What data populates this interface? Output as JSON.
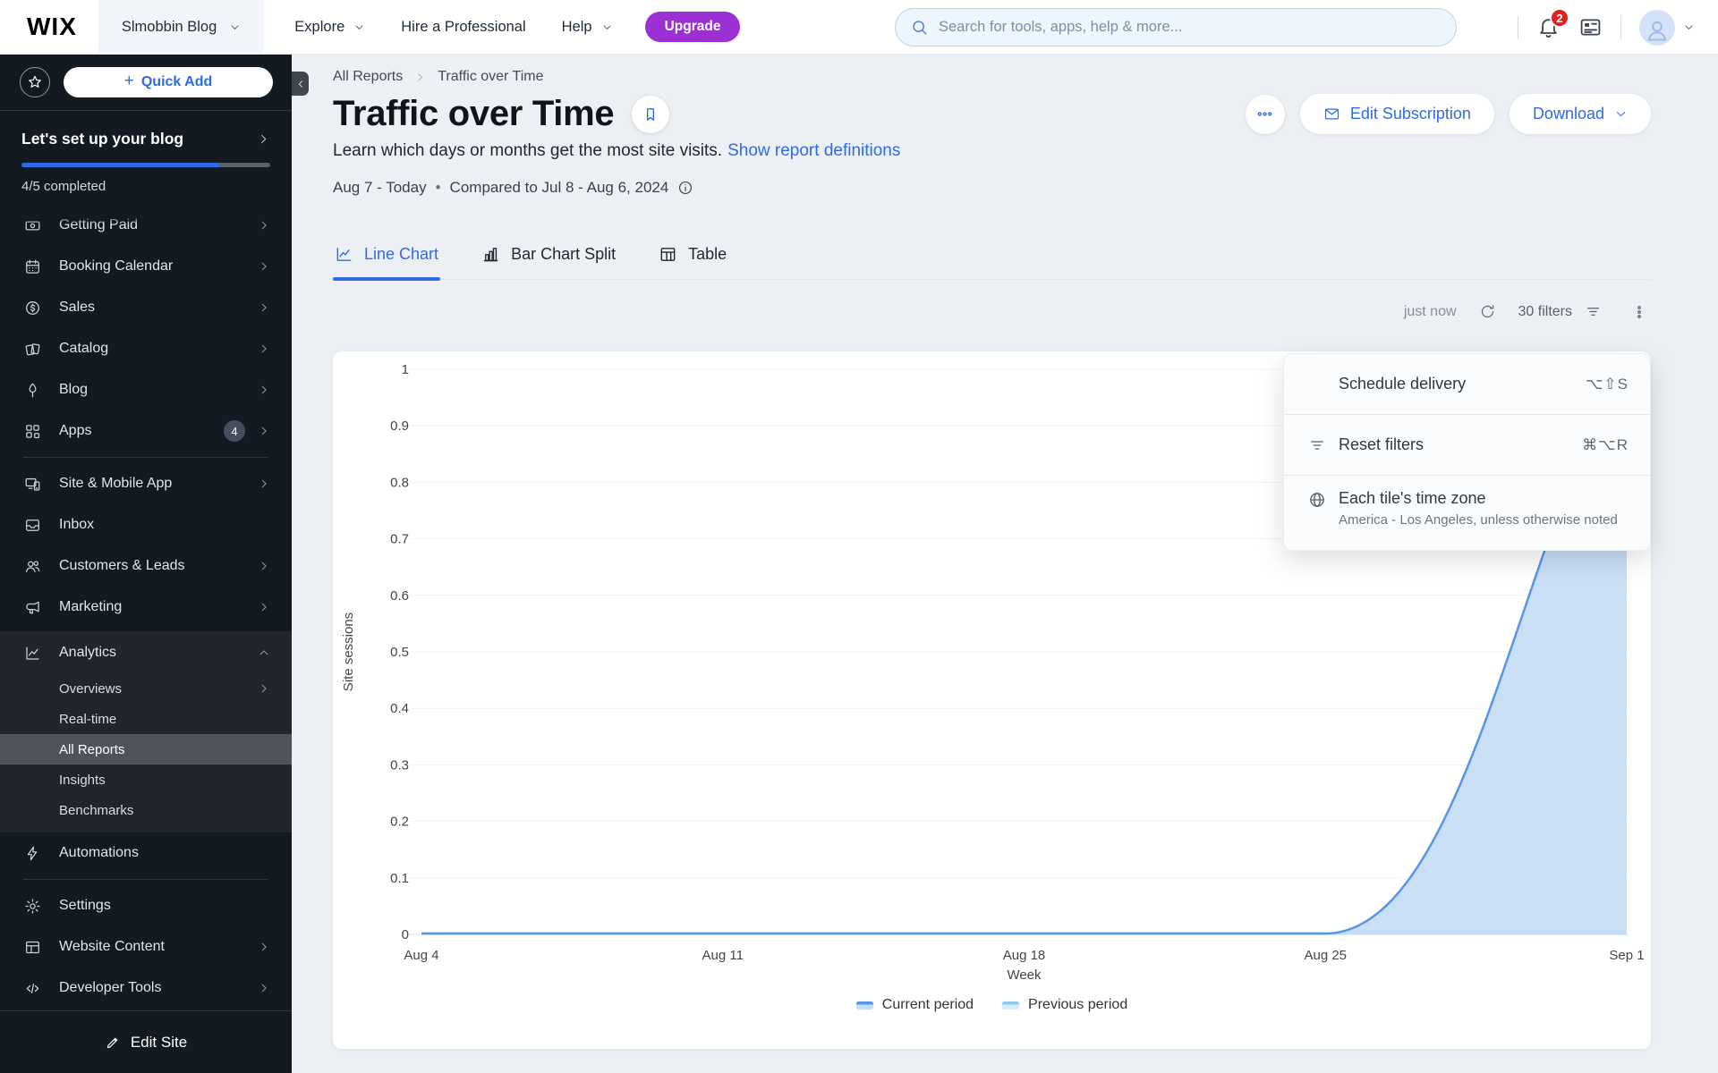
{
  "colors": {
    "accent_blue": "#2f6be4",
    "upgrade_purple": "#9c30d2",
    "notification_red": "#e21f1f",
    "sidebar_bg": "#141a22",
    "page_bg": "#eceff3"
  },
  "topbar": {
    "logo": "WIX",
    "site_menu": {
      "label": "Slmobbin Blog"
    },
    "nav": [
      {
        "label": "Explore"
      },
      {
        "label": "Hire a Professional"
      },
      {
        "label": "Help"
      }
    ],
    "upgrade_label": "Upgrade",
    "search": {
      "placeholder": "Search for tools, apps, help & more..."
    },
    "notifications_badge": "2"
  },
  "sidebar": {
    "quick_add_label": "Quick Add",
    "setup": {
      "title": "Let's set up your blog",
      "completed_text": "4/5 completed",
      "progress_percent": 80
    },
    "menu": [
      {
        "label": "Getting Paid",
        "icon": "getting-paid",
        "chevron": true,
        "clipped": true
      },
      {
        "label": "Booking Calendar",
        "icon": "booking-calendar",
        "chevron": true
      },
      {
        "label": "Sales",
        "icon": "sales",
        "chevron": true
      },
      {
        "label": "Catalog",
        "icon": "catalog",
        "chevron": true
      },
      {
        "label": "Blog",
        "icon": "blog",
        "chevron": true
      },
      {
        "label": "Apps",
        "icon": "apps",
        "chevron": true,
        "badge": "4"
      },
      {
        "divider": true
      },
      {
        "label": "Site & Mobile App",
        "icon": "site-mobile",
        "chevron": true
      },
      {
        "label": "Inbox",
        "icon": "inbox"
      },
      {
        "label": "Customers & Leads",
        "icon": "customers",
        "chevron": true
      },
      {
        "label": "Marketing",
        "icon": "marketing",
        "chevron": true
      },
      {
        "label": "Analytics",
        "icon": "analytics",
        "expanded": true,
        "children": [
          {
            "label": "Overviews",
            "chevron": true
          },
          {
            "label": "Real-time"
          },
          {
            "label": "All Reports",
            "selected": true
          },
          {
            "label": "Insights"
          },
          {
            "label": "Benchmarks"
          }
        ]
      },
      {
        "label": "Automations",
        "icon": "automations"
      },
      {
        "divider": true
      },
      {
        "label": "Settings",
        "icon": "settings"
      },
      {
        "label": "Website Content",
        "icon": "website-content",
        "chevron": true
      },
      {
        "label": "Developer Tools",
        "icon": "developer-tools",
        "chevron": true
      }
    ],
    "edit_site_label": "Edit Site"
  },
  "page": {
    "breadcrumb": [
      "All Reports",
      "Traffic over Time"
    ],
    "title": "Traffic over Time",
    "description": "Learn which days or months get the most site visits.",
    "description_link": "Show report definitions",
    "date_range": "Aug 7 - Today",
    "date_separator": "•",
    "compare_text": "Compared to Jul 8 - Aug 6, 2024",
    "actions": {
      "edit_subscription": "Edit Subscription",
      "download": "Download"
    },
    "tabs": [
      {
        "label": "Line Chart",
        "icon": "line-chart",
        "active": true
      },
      {
        "label": "Bar Chart Split",
        "icon": "bar-chart",
        "active": false
      },
      {
        "label": "Table",
        "icon": "table",
        "active": false
      }
    ],
    "toolbar": {
      "updated_text": "just now",
      "filters_text": "30 filters"
    }
  },
  "menu_popup": {
    "items": [
      {
        "label": "Schedule delivery",
        "shortcut": "⌥⇧S"
      },
      {
        "label": "Reset filters",
        "shortcut": "⌘⌥R",
        "icon": "filter"
      },
      {
        "label": "Each tile's time zone",
        "sublabel": "America - Los Angeles, unless otherwise noted",
        "icon": "globe"
      }
    ]
  },
  "chart_data": {
    "type": "area",
    "title": "",
    "xlabel": "Week",
    "ylabel": "Site sessions",
    "x_ticks": [
      "Aug 4",
      "Aug 11",
      "Aug 18",
      "Aug 25",
      "Sep 1"
    ],
    "ylim": [
      0,
      1
    ],
    "y_tick_step": 0.1,
    "grid": true,
    "legend_position": "bottom",
    "series": [
      {
        "name": "Current period",
        "values": [
          0,
          0,
          0,
          0,
          1
        ],
        "color": "#5795e6",
        "fill": "#c6ddf6"
      },
      {
        "name": "Previous period",
        "values": [
          0,
          0,
          0,
          0,
          0
        ],
        "color": "#8ec9f0",
        "fill": "#d7ecfb"
      }
    ]
  }
}
